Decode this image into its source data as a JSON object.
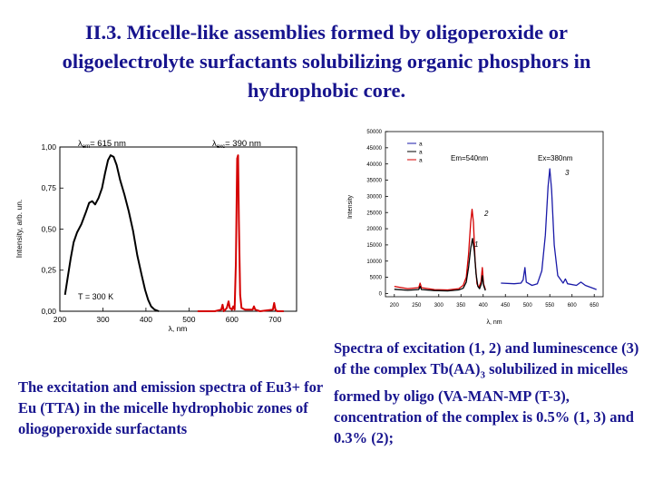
{
  "slide": {
    "title": "II.3. Micelle-like assemblies formed by oligoperoxide or oligoelectrolyte surfactants solubilizing organic phosphors in hydrophobic core.",
    "caption_left": "The excitation and emission spectra of Eu3+ for Eu (TTA) in the micelle hydrophobic zones of oliogoperoxide surfactants",
    "caption_right_part1": "Spectra of excitation (1, 2) and luminescence (3) of the complex Tb(AA)",
    "caption_right_sub": "3",
    "caption_right_part2": " solubilized in micelles formed by  oligo (VA-MAN-MP (T-3), concentration of the complex is 0.5% (1, 3) and 0.3% (2);"
  },
  "chart_data": [
    {
      "type": "line",
      "xlabel": "λ, nm",
      "ylabel": "Intensity, arb. un.",
      "xlim": [
        200,
        750
      ],
      "ylim": [
        0,
        1.0
      ],
      "xticks": [
        200,
        300,
        400,
        500,
        600,
        700
      ],
      "yticks": [
        0,
        0.25,
        0.5,
        0.75,
        1.0
      ],
      "ytick_labels": [
        "0,00",
        "0,25",
        "0,50",
        "0,75",
        "1,00"
      ],
      "annotations": {
        "em_symbol": "λ",
        "em_sub": "em",
        "em_value": "= 615 nm",
        "exc_symbol": "λ",
        "exc_sub": "exc",
        "exc_value": "= 390 nm",
        "temperature": "T = 300 K"
      },
      "series": [
        {
          "color": "#000000",
          "points": [
            [
              212,
              0.1
            ],
            [
              218,
              0.2
            ],
            [
              225,
              0.32
            ],
            [
              232,
              0.42
            ],
            [
              240,
              0.48
            ],
            [
              250,
              0.53
            ],
            [
              260,
              0.6
            ],
            [
              268,
              0.66
            ],
            [
              275,
              0.67
            ],
            [
              282,
              0.65
            ],
            [
              290,
              0.69
            ],
            [
              298,
              0.75
            ],
            [
              305,
              0.84
            ],
            [
              312,
              0.92
            ],
            [
              318,
              0.95
            ],
            [
              325,
              0.94
            ],
            [
              332,
              0.89
            ],
            [
              340,
              0.8
            ],
            [
              350,
              0.71
            ],
            [
              360,
              0.61
            ],
            [
              370,
              0.49
            ],
            [
              380,
              0.34
            ],
            [
              390,
              0.22
            ],
            [
              398,
              0.13
            ],
            [
              405,
              0.07
            ],
            [
              412,
              0.03
            ],
            [
              420,
              0.01
            ],
            [
              430,
              0.0
            ]
          ]
        },
        {
          "color": "#d40000",
          "points": [
            [
              520,
              0.0
            ],
            [
              560,
              0.0
            ],
            [
              575,
              0.01
            ],
            [
              578,
              0.04
            ],
            [
              581,
              0.0
            ],
            [
              588,
              0.02
            ],
            [
              592,
              0.06
            ],
            [
              595,
              0.02
            ],
            [
              600,
              0.01
            ],
            [
              603,
              0.03
            ],
            [
              606,
              0.01
            ],
            [
              609,
              0.3
            ],
            [
              612,
              0.93
            ],
            [
              614,
              0.95
            ],
            [
              616,
              0.55
            ],
            [
              619,
              0.1
            ],
            [
              622,
              0.02
            ],
            [
              630,
              0.01
            ],
            [
              648,
              0.01
            ],
            [
              651,
              0.03
            ],
            [
              654,
              0.01
            ],
            [
              665,
              0.0
            ],
            [
              695,
              0.01
            ],
            [
              698,
              0.05
            ],
            [
              701,
              0.01
            ],
            [
              705,
              0.0
            ],
            [
              720,
              0.0
            ]
          ]
        }
      ]
    },
    {
      "type": "line",
      "xlabel": "λ, nm",
      "ylabel": "Intensity",
      "xlim": [
        180,
        670
      ],
      "ylim": [
        -1000,
        50000
      ],
      "xticks": [
        200,
        250,
        300,
        350,
        400,
        450,
        500,
        550,
        600,
        650
      ],
      "yticks": [
        0,
        5000,
        10000,
        15000,
        20000,
        25000,
        30000,
        35000,
        40000,
        45000,
        50000
      ],
      "legend": {
        "placement": "top-left",
        "entries": [
          {
            "name": "a",
            "color": "#1a1aa8"
          },
          {
            "name": "a",
            "color": "#000000"
          },
          {
            "name": "a",
            "color": "#d40000"
          }
        ]
      },
      "annotations": {
        "em_label": "Em=540nm",
        "ex_label": "Ex=380nm",
        "curve_1": "1",
        "curve_2": "2",
        "curve_3": "3"
      },
      "series": [
        {
          "name": "2",
          "color": "#d40000",
          "points": [
            [
              200,
              2200
            ],
            [
              230,
              1500
            ],
            [
              255,
              1800
            ],
            [
              258,
              3200
            ],
            [
              261,
              1800
            ],
            [
              290,
              1200
            ],
            [
              320,
              1100
            ],
            [
              345,
              1500
            ],
            [
              355,
              2500
            ],
            [
              362,
              5000
            ],
            [
              367,
              12000
            ],
            [
              372,
              22000
            ],
            [
              375,
              26000
            ],
            [
              378,
              22000
            ],
            [
              382,
              10000
            ],
            [
              386,
              3000
            ],
            [
              390,
              1800
            ],
            [
              395,
              3500
            ],
            [
              398,
              8000
            ],
            [
              401,
              3000
            ],
            [
              405,
              1200
            ]
          ]
        },
        {
          "name": "1",
          "color": "#000000",
          "points": [
            [
              200,
              1300
            ],
            [
              230,
              1000
            ],
            [
              255,
              1200
            ],
            [
              258,
              2200
            ],
            [
              261,
              1200
            ],
            [
              290,
              900
            ],
            [
              320,
              800
            ],
            [
              345,
              1100
            ],
            [
              355,
              1600
            ],
            [
              362,
              3500
            ],
            [
              367,
              8000
            ],
            [
              372,
              14000
            ],
            [
              376,
              17000
            ],
            [
              380,
              13000
            ],
            [
              384,
              6000
            ],
            [
              388,
              2200
            ],
            [
              392,
              1500
            ],
            [
              396,
              3000
            ],
            [
              398,
              5500
            ],
            [
              401,
              2500
            ],
            [
              405,
              900
            ]
          ]
        },
        {
          "name": "3",
          "color": "#1a1aa8",
          "points": [
            [
              440,
              3200
            ],
            [
              470,
              3000
            ],
            [
              485,
              3200
            ],
            [
              490,
              4200
            ],
            [
              494,
              8000
            ],
            [
              497,
              3500
            ],
            [
              510,
              2500
            ],
            [
              522,
              3000
            ],
            [
              532,
              7000
            ],
            [
              540,
              18000
            ],
            [
              546,
              33000
            ],
            [
              550,
              38500
            ],
            [
              554,
              32000
            ],
            [
              560,
              15000
            ],
            [
              568,
              5500
            ],
            [
              580,
              3200
            ],
            [
              585,
              4500
            ],
            [
              590,
              3000
            ],
            [
              610,
              2500
            ],
            [
              620,
              3500
            ],
            [
              630,
              2500
            ],
            [
              650,
              1500
            ],
            [
              655,
              1200
            ]
          ]
        }
      ]
    }
  ]
}
